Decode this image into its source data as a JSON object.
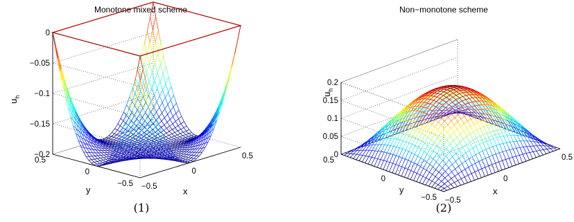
{
  "chart_data": [
    {
      "type": "surface",
      "title": "Monotone mixed scheme",
      "caption": "(1)",
      "xlabel": "x",
      "ylabel": "y",
      "zlabel": "u",
      "zlabel_sub": "h",
      "xlim": [
        -0.5,
        0.5
      ],
      "ylim": [
        -0.5,
        0.5
      ],
      "zlim": [
        -0.2,
        0
      ],
      "xticks": [
        "−0.5",
        "0",
        "0.5"
      ],
      "yticks": [
        "−0.5",
        "0",
        "0.5"
      ],
      "zticks": [
        "−0.2",
        "−0.15",
        "−0.1",
        "−0.05",
        "0"
      ],
      "surface": "bowl with minimum about -0.2 at the center and 0 on the boundary",
      "peak_value": -0.2,
      "boundary_value": 0,
      "grid": true,
      "colormap": "jet"
    },
    {
      "type": "surface",
      "title": "Non−monotone scheme",
      "caption": "(2)",
      "xlabel": "x",
      "ylabel": "y",
      "zlabel": "u",
      "zlabel_sub": "h",
      "xlim": [
        -0.5,
        0.5
      ],
      "ylim": [
        -0.5,
        0.5
      ],
      "zlim": [
        0,
        0.2
      ],
      "xticks": [
        "−0.5",
        "0",
        "0.5"
      ],
      "yticks": [
        "−0.5",
        "0",
        "0.5"
      ],
      "zticks": [
        "0",
        "0.05",
        "0.1",
        "0.15",
        "0.2"
      ],
      "surface": "dome with maximum about 0.175 at the center and 0 on the boundary",
      "peak_value": 0.175,
      "boundary_value": 0,
      "grid": true,
      "colormap": "jet"
    }
  ]
}
